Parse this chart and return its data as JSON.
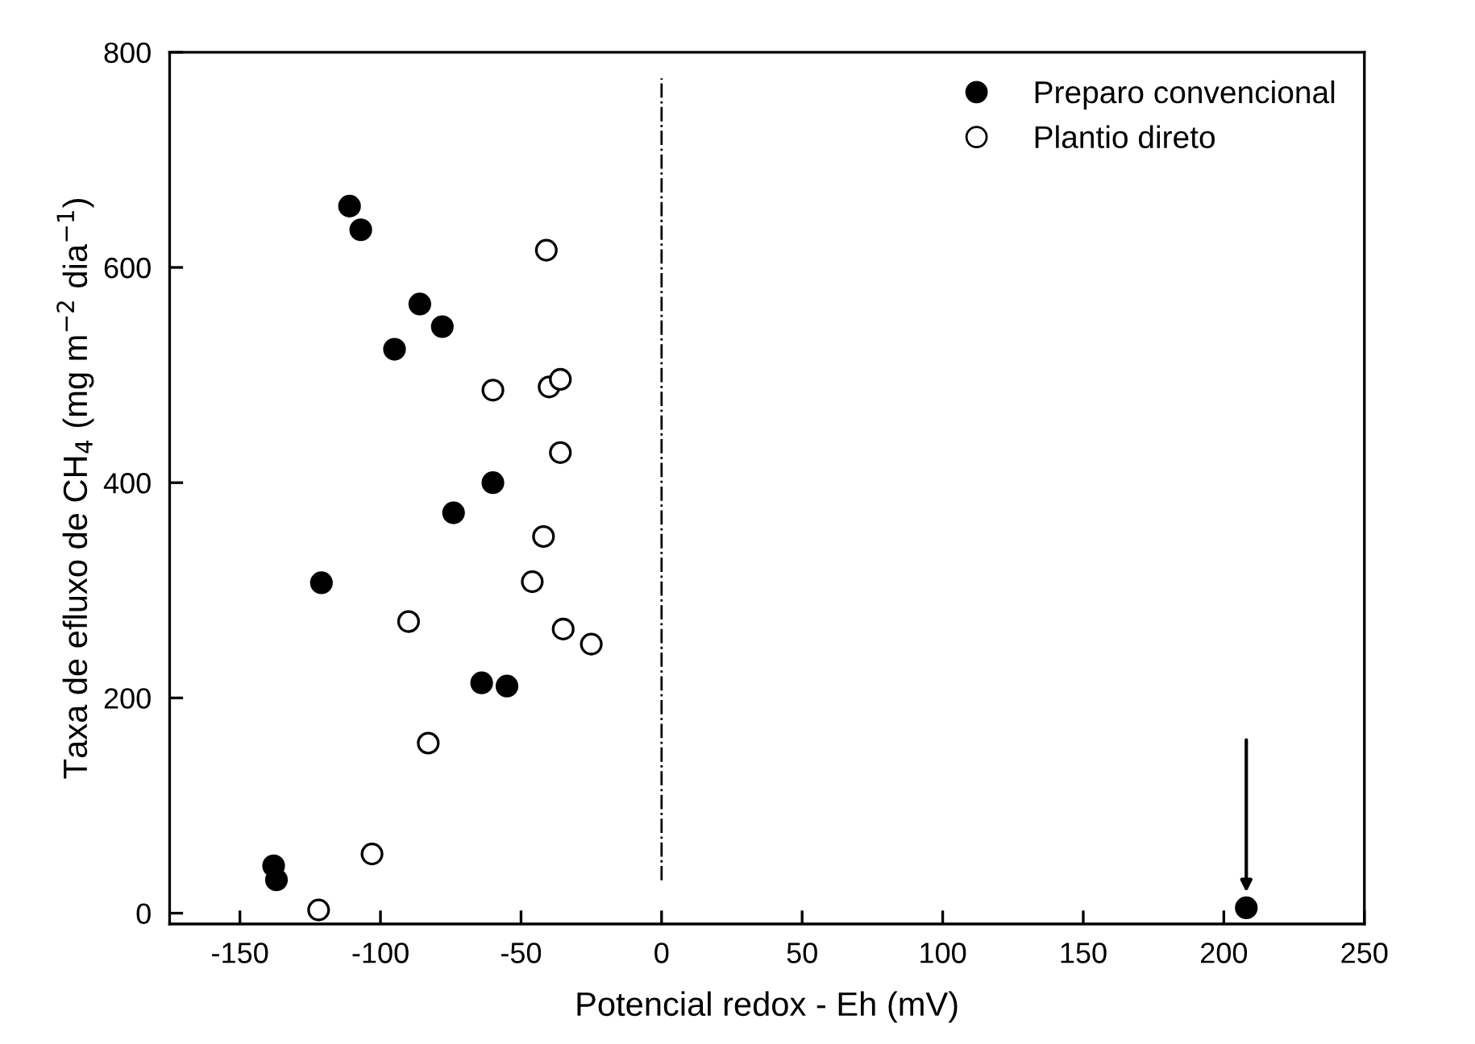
{
  "chart_data": {
    "type": "scatter",
    "xlabel": "Potencial redox - Eh (mV)",
    "ylabel": "Taxa de efluxo de CH$_{4}$ (mg m$^{−2}$ dia$^{−1}$)",
    "xlim": [
      -175,
      250
    ],
    "ylim": [
      -10,
      800
    ],
    "xticks": [
      -150,
      -100,
      -50,
      0,
      50,
      100,
      150,
      200,
      250
    ],
    "yticks": [
      0,
      200,
      400,
      600,
      800
    ],
    "grid": false,
    "legend": "top right",
    "marker": "circle",
    "series": [
      {
        "name": "Preparo convencional",
        "color": "#000000",
        "x": [
          -111,
          -107,
          -86,
          -78,
          -95,
          -60,
          -74,
          -121,
          -64,
          -55,
          -138,
          -137,
          208
        ],
        "values": [
          657,
          635,
          566,
          545,
          524,
          400,
          372,
          307,
          214,
          211,
          44,
          31,
          5
        ]
      },
      {
        "name": "Plantio direto",
        "color": "#ffffff",
        "x": [
          -41,
          -60,
          -40,
          -36,
          -36,
          -42,
          -46,
          -90,
          -35,
          -25,
          -83,
          -103,
          -122
        ],
        "values": [
          616,
          486,
          489,
          496,
          428,
          350,
          308,
          271,
          264,
          250,
          158,
          55,
          3
        ]
      }
    ],
    "ref_lines": [
      {
        "axis": "x",
        "value": 0,
        "line_style": "dashdot",
        "color": "#000000"
      }
    ]
  }
}
